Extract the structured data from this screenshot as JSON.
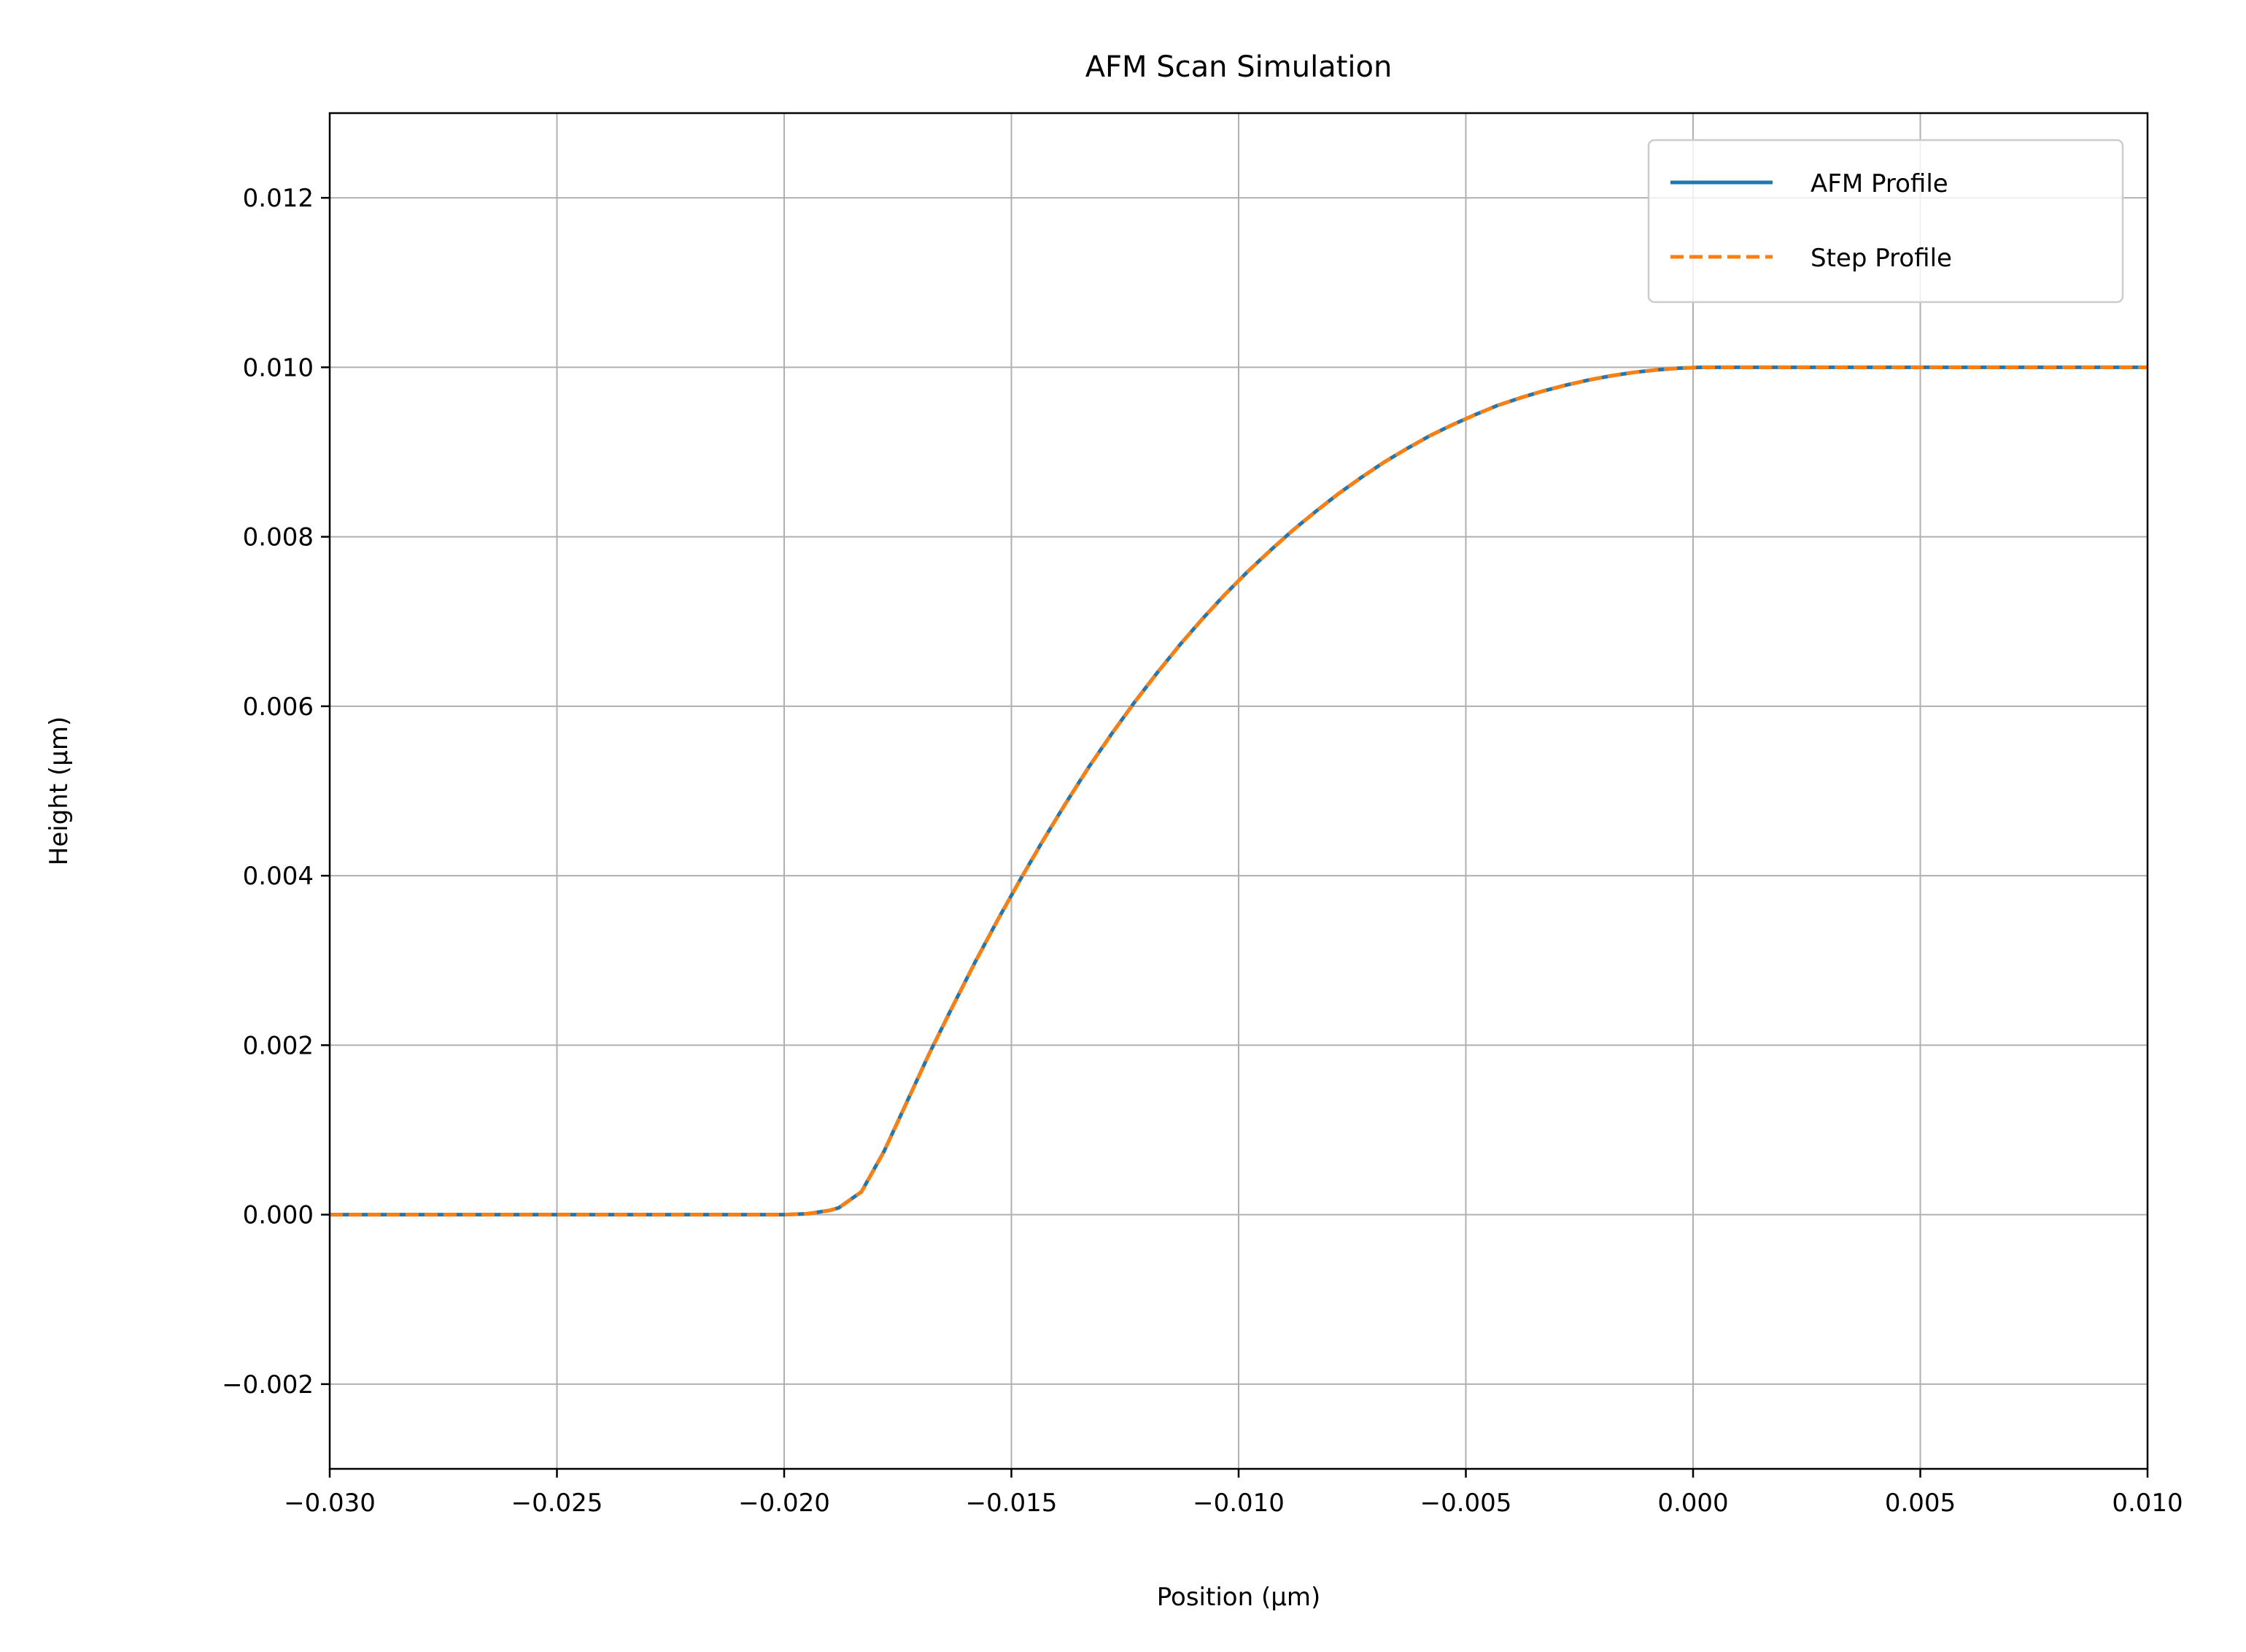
{
  "chart_data": {
    "type": "line",
    "title": "AFM Scan Simulation",
    "xlabel": "Position (µm)",
    "ylabel": "Height (µm)",
    "xlim": [
      -0.03,
      0.01
    ],
    "ylim": [
      -0.003,
      0.013
    ],
    "grid": true,
    "legend_position": "top-right",
    "x_ticks": [
      -0.03,
      -0.025,
      -0.02,
      -0.015,
      -0.01,
      -0.005,
      0.0,
      0.005,
      0.01
    ],
    "x_tick_labels": [
      "−0.030",
      "−0.025",
      "−0.020",
      "−0.015",
      "−0.010",
      "−0.005",
      "0.000",
      "0.005",
      "0.010"
    ],
    "y_ticks": [
      -0.002,
      0.0,
      0.002,
      0.004,
      0.006,
      0.008,
      0.01,
      0.012
    ],
    "y_tick_labels": [
      "−0.002",
      "0.000",
      "0.002",
      "0.004",
      "0.006",
      "0.008",
      "0.010",
      "0.012"
    ],
    "x": [
      -0.03,
      -0.028,
      -0.026,
      -0.024,
      -0.022,
      -0.02,
      -0.0195,
      -0.019,
      -0.0188,
      -0.0183,
      -0.0178,
      -0.0173,
      -0.0168,
      -0.0163,
      -0.0158,
      -0.0153,
      -0.0148,
      -0.0143,
      -0.0138,
      -0.0133,
      -0.0128,
      -0.0123,
      -0.0118,
      -0.0113,
      -0.0108,
      -0.0103,
      -0.0098,
      -0.0093,
      -0.0088,
      -0.0083,
      -0.0078,
      -0.0073,
      -0.0068,
      -0.0063,
      -0.0058,
      -0.0053,
      -0.0048,
      -0.0043,
      -0.0038,
      -0.0033,
      -0.0028,
      -0.0023,
      -0.0018,
      -0.0013,
      -0.0008,
      -0.0003,
      0.0002,
      0.0007,
      0.0012,
      0.0017,
      0.0022,
      0.0027,
      0.0032,
      0.004,
      0.005,
      0.006,
      0.007,
      0.008,
      0.009,
      0.01
    ],
    "series": [
      {
        "name": "AFM Profile",
        "color": "#1f77b4",
        "style": "solid",
        "values": [
          0.0,
          0.0,
          0.0,
          0.0,
          0.0,
          0.0,
          1e-05,
          5e-05,
          8e-05,
          0.00027,
          0.00075,
          0.00133,
          0.00191,
          0.00245,
          0.00298,
          0.00348,
          0.00396,
          0.00442,
          0.00486,
          0.00528,
          0.00567,
          0.00604,
          0.00639,
          0.00672,
          0.00703,
          0.00732,
          0.00759,
          0.00784,
          0.00808,
          0.0083,
          0.00851,
          0.0087,
          0.00888,
          0.00904,
          0.00919,
          0.00932,
          0.00944,
          0.00955,
          0.00964,
          0.00972,
          0.00979,
          0.00985,
          0.0099,
          0.00994,
          0.00997,
          0.00999,
          0.01,
          0.01,
          0.01,
          0.01,
          0.01,
          0.01,
          0.01,
          0.01,
          0.01,
          0.01,
          0.01,
          0.01,
          0.01,
          0.01
        ]
      },
      {
        "name": "Step Profile",
        "color": "#ff7f0e",
        "style": "dashed",
        "values": [
          0.0,
          0.0,
          0.0,
          0.0,
          0.0,
          0.0,
          1e-05,
          5e-05,
          8e-05,
          0.00027,
          0.00075,
          0.00133,
          0.00191,
          0.00245,
          0.00298,
          0.00348,
          0.00396,
          0.00442,
          0.00486,
          0.00528,
          0.00567,
          0.00604,
          0.00639,
          0.00672,
          0.00703,
          0.00732,
          0.00759,
          0.00784,
          0.00808,
          0.0083,
          0.00851,
          0.0087,
          0.00888,
          0.00904,
          0.00919,
          0.00932,
          0.00944,
          0.00955,
          0.00964,
          0.00972,
          0.00979,
          0.00985,
          0.0099,
          0.00994,
          0.00997,
          0.00999,
          0.01,
          0.01,
          0.01,
          0.01,
          0.01,
          0.01,
          0.01,
          0.01,
          0.01,
          0.01,
          0.01,
          0.01,
          0.01,
          0.01
        ]
      }
    ]
  }
}
